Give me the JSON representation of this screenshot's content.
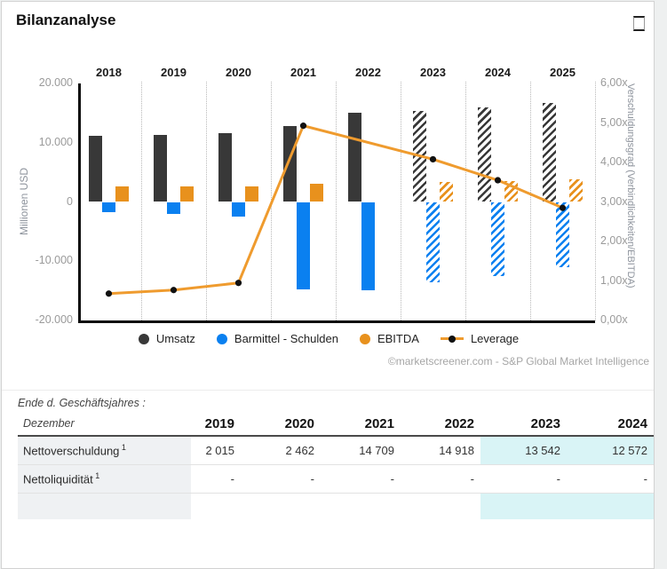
{
  "header": {
    "title": "Bilanzanalyse"
  },
  "attribution": "©marketscreener.com - S&P Global Market Intelligence",
  "colors": {
    "umsatz": "#383838",
    "barmittel_schulden": "#0a80f0",
    "ebitda": "#e8911d",
    "leverage_line": "#ef9b2e",
    "leverage_marker": "#111111",
    "table_highlight": "#d9f4f6",
    "table_label_bg": "#eff1f3"
  },
  "chart_data": {
    "type": "combo",
    "title": "Bilanzanalyse",
    "categories": [
      "2018",
      "2019",
      "2020",
      "2021",
      "2022",
      "2023",
      "2024",
      "2025"
    ],
    "estimate_start_index": 5,
    "series": [
      {
        "name": "Umsatz",
        "type": "bar",
        "axis": "left",
        "color": "#383838",
        "values": [
          11200,
          11350,
          11650,
          12800,
          15050,
          15350,
          15950,
          16650
        ]
      },
      {
        "name": "Barmittel - Schulden",
        "type": "bar",
        "axis": "left",
        "color": "#0a80f0",
        "values": [
          -1700,
          -2015,
          -2462,
          -14709,
          -14918,
          -13542,
          -12572,
          -11000
        ]
      },
      {
        "name": "EBITDA",
        "type": "bar",
        "axis": "left",
        "color": "#e8911d",
        "values": [
          2600,
          2650,
          2650,
          3050,
          null,
          3350,
          3550,
          3800
        ]
      },
      {
        "name": "Leverage",
        "type": "line",
        "axis": "right",
        "color": "#ef9b2e",
        "marker_color": "#111111",
        "values": [
          0.68,
          0.77,
          0.95,
          4.93,
          null,
          4.08,
          3.55,
          2.85
        ]
      }
    ],
    "left_axis": {
      "title": "Millionen USD",
      "min": -20000,
      "max": 20000,
      "tick_labels": [
        "20.000",
        "10.000",
        "0",
        "-10.000",
        "-20.000"
      ]
    },
    "right_axis": {
      "title": "Verschuldungsgrad (Verbindlichkeiten/EBITDA)",
      "min": 0,
      "max": 6,
      "tick_labels": [
        "6,00x",
        "5,00x",
        "4,00x",
        "3,00x",
        "2,00x",
        "1,00x",
        "0,00x"
      ]
    },
    "legend_position": "bottom-center",
    "grid": "vertical-dotted"
  },
  "table": {
    "note_line1": "Ende d. Geschäftsjahres :",
    "note_line2": "Dezember",
    "years": [
      "2019",
      "2020",
      "2021",
      "2022",
      "2023",
      "2024"
    ],
    "rows": [
      {
        "label": "Nettoverschuldung",
        "footnote": "1",
        "values": [
          "2 015",
          "2 462",
          "14 709",
          "14 918",
          "13 542",
          "12 572"
        ],
        "highlight_cols": [
          4,
          5
        ]
      },
      {
        "label": "Nettoliquidität",
        "footnote": "1",
        "values": [
          "-",
          "-",
          "-",
          "-",
          "-",
          "-"
        ],
        "highlight_cols": []
      }
    ],
    "partial_row": {
      "label": "",
      "values": [
        "",
        "",
        "",
        "",
        "",
        ""
      ],
      "highlight_cols": [
        4,
        5
      ]
    }
  }
}
